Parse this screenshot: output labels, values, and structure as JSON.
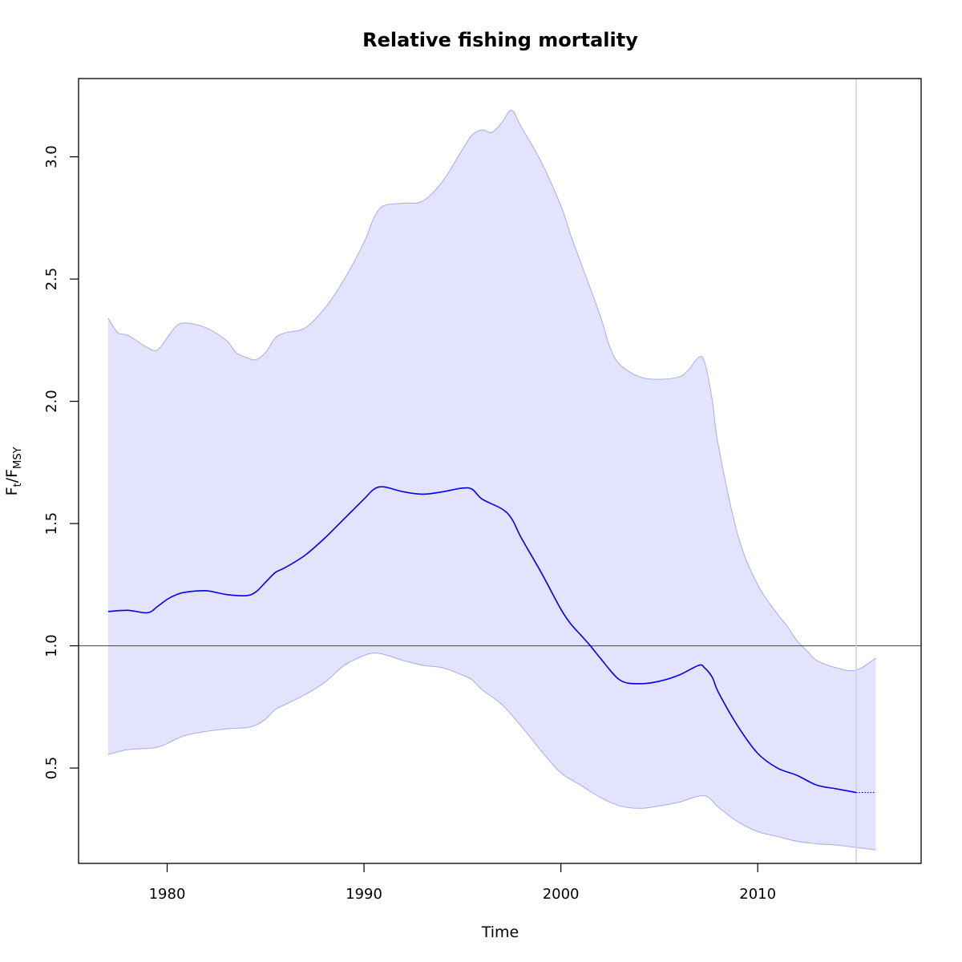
{
  "chart_data": {
    "type": "line",
    "title": "Relative fishing mortality",
    "xlabel": "Time",
    "ylabel": {
      "main": "F",
      "sub1": "t",
      "sep": "/F",
      "sub2": "MSY"
    },
    "xlim": [
      1975.5,
      2018.3
    ],
    "ylim": [
      0.11,
      3.32
    ],
    "x_ticks": [
      1980,
      1990,
      2000,
      2010
    ],
    "x_tick_labels": [
      "1980",
      "1990",
      "2000",
      "2010"
    ],
    "y_ticks": [
      0.5,
      1.0,
      1.5,
      2.0,
      2.5,
      3.0
    ],
    "y_tick_labels": [
      "0.5",
      "1.0",
      "1.5",
      "2.0",
      "2.5",
      "3.0"
    ],
    "reference_line_y": 1.0,
    "reference_line_x": 2015,
    "grid": false,
    "colors": {
      "line": "#0000ee",
      "band_fill": "#e3e3fd",
      "band_edge": "#aaaaee",
      "ref_h": "#555555",
      "ref_v": "#d0d0d8"
    },
    "series": [
      {
        "role": "estimate",
        "x": [
          1977,
          1978,
          1979,
          1979.5,
          1980,
          1980.5,
          1981,
          1982,
          1983,
          1984,
          1984.5,
          1985,
          1985.5,
          1986,
          1987,
          1988,
          1989,
          1990,
          1990.5,
          1991,
          1992,
          1993,
          1994,
          1995,
          1995.5,
          1996,
          1997,
          1997.5,
          1998,
          1999,
          2000,
          2000.5,
          2001,
          2001.5,
          2002,
          2003,
          2004,
          2005,
          2006,
          2007,
          2007.3,
          2007.7,
          2008,
          2009,
          2010,
          2011,
          2012,
          2013,
          2014,
          2015
        ],
        "y": [
          1.14,
          1.145,
          1.135,
          1.16,
          1.19,
          1.21,
          1.22,
          1.225,
          1.21,
          1.205,
          1.22,
          1.26,
          1.3,
          1.32,
          1.37,
          1.44,
          1.52,
          1.6,
          1.64,
          1.65,
          1.63,
          1.62,
          1.63,
          1.645,
          1.64,
          1.6,
          1.56,
          1.52,
          1.44,
          1.3,
          1.15,
          1.09,
          1.045,
          1.0,
          0.95,
          0.86,
          0.845,
          0.855,
          0.88,
          0.92,
          0.91,
          0.87,
          0.81,
          0.67,
          0.56,
          0.5,
          0.47,
          0.43,
          0.415,
          0.4
        ]
      },
      {
        "role": "forecast",
        "x": [
          2015,
          2016
        ],
        "y": [
          0.4,
          0.4
        ]
      },
      {
        "role": "ci_upper",
        "x": [
          1977,
          1977.5,
          1978,
          1979,
          1979.5,
          1980,
          1980.5,
          1981,
          1982,
          1983,
          1983.5,
          1984,
          1984.5,
          1985,
          1985.5,
          1986,
          1987,
          1988,
          1989,
          1990,
          1990.5,
          1991,
          1992,
          1993,
          1994,
          1995,
          1995.5,
          1996,
          1996.5,
          1997,
          1997.5,
          1998,
          1999,
          2000,
          2000.5,
          2001,
          2002,
          2002.5,
          2003,
          2004,
          2005,
          2006,
          2006.5,
          2007,
          2007.3,
          2007.7,
          2008,
          2009,
          2010,
          2011,
          2011.5,
          2012,
          2012.5,
          2013,
          2014,
          2015,
          2016
        ],
        "y": [
          2.34,
          2.28,
          2.27,
          2.22,
          2.21,
          2.26,
          2.31,
          2.32,
          2.3,
          2.25,
          2.2,
          2.18,
          2.17,
          2.2,
          2.26,
          2.28,
          2.3,
          2.38,
          2.5,
          2.65,
          2.75,
          2.8,
          2.81,
          2.82,
          2.9,
          3.03,
          3.09,
          3.11,
          3.1,
          3.14,
          3.19,
          3.12,
          2.98,
          2.8,
          2.68,
          2.57,
          2.35,
          2.22,
          2.15,
          2.1,
          2.09,
          2.1,
          2.13,
          2.18,
          2.16,
          2.0,
          1.82,
          1.45,
          1.25,
          1.13,
          1.08,
          1.02,
          0.98,
          0.94,
          0.91,
          0.9,
          0.95
        ]
      },
      {
        "role": "ci_lower",
        "x": [
          1977,
          1978,
          1979,
          1979.5,
          1980,
          1980.5,
          1981,
          1982,
          1983,
          1984,
          1984.5,
          1985,
          1985.5,
          1986,
          1987,
          1988,
          1989,
          1990,
          1990.5,
          1991,
          1992,
          1993,
          1994,
          1995,
          1995.5,
          1996,
          1997,
          1998,
          1999,
          2000,
          2001,
          2002,
          2003,
          2004,
          2005,
          2006,
          2007,
          2007.5,
          2008,
          2009,
          2010,
          2011,
          2012,
          2013,
          2014,
          2015,
          2016
        ],
        "y": [
          0.555,
          0.575,
          0.58,
          0.585,
          0.6,
          0.62,
          0.635,
          0.65,
          0.66,
          0.665,
          0.675,
          0.7,
          0.74,
          0.76,
          0.8,
          0.85,
          0.92,
          0.96,
          0.97,
          0.965,
          0.94,
          0.92,
          0.91,
          0.88,
          0.86,
          0.82,
          0.76,
          0.67,
          0.57,
          0.48,
          0.43,
          0.38,
          0.345,
          0.335,
          0.345,
          0.36,
          0.385,
          0.38,
          0.34,
          0.28,
          0.24,
          0.22,
          0.2,
          0.19,
          0.185,
          0.175,
          0.165
        ]
      }
    ]
  }
}
